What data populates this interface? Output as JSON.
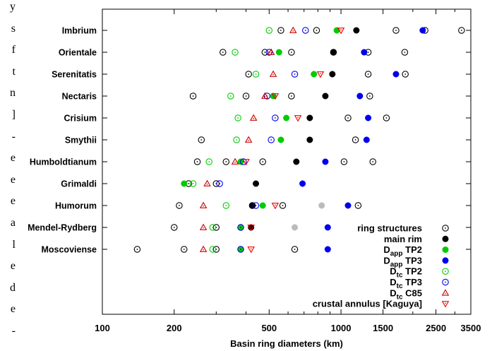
{
  "page_edge_glyphs": [
    "y",
    "s",
    "f",
    "t",
    "n",
    "]",
    "-",
    "e",
    "e",
    "e",
    "a",
    "l",
    "e",
    "d",
    "e",
    "-"
  ],
  "chart_data": {
    "type": "scatter",
    "title": "",
    "xlabel": "Basin ring diameters (km)",
    "ylabel": "",
    "xscale": "log",
    "xlim": [
      100,
      3500
    ],
    "xticks": [
      100,
      200,
      500,
      1000,
      1500,
      2500,
      3500
    ],
    "xtick_labels": [
      "100",
      "200",
      "500",
      "1000",
      "1500",
      "2500",
      "3500"
    ],
    "grid": false,
    "legend_position": "lower-right",
    "categories": [
      "Imbrium",
      "Orientale",
      "Serenitatis",
      "Nectaris",
      "Crisium",
      "Smythii",
      "Humboldtianum",
      "Grimaldi",
      "Humorum",
      "Mendel-Rydberg",
      "Moscoviense"
    ],
    "series": [
      {
        "name": "ring structures",
        "marker": "open-circle-dot",
        "color": "#000000",
        "points": [
          {
            "category": "Imbrium",
            "x": [
              560,
              790,
              1700,
              2250,
              3200
            ]
          },
          {
            "category": "Orientale",
            "x": [
              320,
              480,
              620,
              930,
              1300,
              1850
            ]
          },
          {
            "category": "Serenitatis",
            "x": [
              410,
              1300,
              1860
            ]
          },
          {
            "category": "Nectaris",
            "x": [
              240,
              400,
              620,
              1320
            ]
          },
          {
            "category": "Crisium",
            "x": [
              1070,
              1550
            ]
          },
          {
            "category": "Smythii",
            "x": [
              260,
              1150
            ]
          },
          {
            "category": "Humboldtianum",
            "x": [
              250,
              330,
              470,
              1030,
              1360
            ]
          },
          {
            "category": "Grimaldi",
            "x": [
              230,
              300
            ]
          },
          {
            "category": "Humorum",
            "x": [
              210,
              425,
              570,
              1180
            ]
          },
          {
            "category": "Mendel-Rydberg",
            "x": [
              200,
              300
            ]
          },
          {
            "category": "Moscoviense",
            "x": [
              140,
              220,
              300,
              640
            ]
          }
        ]
      },
      {
        "name": "main rim",
        "marker": "filled-circle",
        "color": "#000000",
        "points": [
          {
            "category": "Imbrium",
            "x": [
              1160
            ]
          },
          {
            "category": "Orientale",
            "x": [
              930
            ]
          },
          {
            "category": "Serenitatis",
            "x": [
              920
            ]
          },
          {
            "category": "Nectaris",
            "x": [
              860
            ]
          },
          {
            "category": "Crisium",
            "x": [
              740
            ]
          },
          {
            "category": "Smythii",
            "x": [
              740
            ]
          },
          {
            "category": "Humboldtianum",
            "x": [
              650
            ]
          },
          {
            "category": "Grimaldi",
            "x": [
              440
            ]
          },
          {
            "category": "Humorum",
            "x": [
              425
            ]
          },
          {
            "category": "Mendel-Rydberg",
            "x": [
              420
            ]
          }
        ]
      },
      {
        "name": "D_app TP2",
        "marker": "filled-circle",
        "color": "#00cc00",
        "points": [
          {
            "category": "Imbrium",
            "x": [
              960
            ]
          },
          {
            "category": "Orientale",
            "x": [
              550
            ]
          },
          {
            "category": "Serenitatis",
            "x": [
              770
            ]
          },
          {
            "category": "Nectaris",
            "x": [
              520
            ]
          },
          {
            "category": "Crisium",
            "x": [
              590
            ]
          },
          {
            "category": "Smythii",
            "x": [
              560
            ]
          },
          {
            "category": "Humboldtianum",
            "x": [
              380
            ]
          },
          {
            "category": "Grimaldi",
            "x": [
              220
            ]
          },
          {
            "category": "Humorum",
            "x": [
              470
            ]
          },
          {
            "category": "Mendel-Rydberg",
            "x": [
              380
            ]
          },
          {
            "category": "Moscoviense",
            "x": [
              380
            ]
          }
        ]
      },
      {
        "name": "D_app TP3",
        "marker": "filled-circle",
        "color": "#0000ee",
        "points": [
          {
            "category": "Imbrium",
            "x": [
              2200
            ]
          },
          {
            "category": "Orientale",
            "x": [
              1250
            ]
          },
          {
            "category": "Serenitatis",
            "x": [
              1700
            ]
          },
          {
            "category": "Nectaris",
            "x": [
              1200
            ]
          },
          {
            "category": "Crisium",
            "x": [
              1300
            ]
          },
          {
            "category": "Smythii",
            "x": [
              1280
            ]
          },
          {
            "category": "Humboldtianum",
            "x": [
              860
            ]
          },
          {
            "category": "Grimaldi",
            "x": [
              690
            ]
          },
          {
            "category": "Humorum",
            "x": [
              1070
            ]
          },
          {
            "category": "Mendel-Rydberg",
            "x": [
              880
            ]
          },
          {
            "category": "Moscoviense",
            "x": [
              880
            ]
          }
        ]
      },
      {
        "name": "D_tc TP2",
        "marker": "open-circle-dot",
        "color": "#00cc00",
        "points": [
          {
            "category": "Imbrium",
            "x": [
              500
            ]
          },
          {
            "category": "Orientale",
            "x": [
              360
            ]
          },
          {
            "category": "Serenitatis",
            "x": [
              440
            ]
          },
          {
            "category": "Nectaris",
            "x": [
              345
            ]
          },
          {
            "category": "Crisium",
            "x": [
              370
            ]
          },
          {
            "category": "Smythii",
            "x": [
              365
            ]
          },
          {
            "category": "Humboldtianum",
            "x": [
              280
            ]
          },
          {
            "category": "Grimaldi",
            "x": [
              240
            ]
          },
          {
            "category": "Humorum",
            "x": [
              330
            ]
          },
          {
            "category": "Mendel-Rydberg",
            "x": [
              290
            ]
          },
          {
            "category": "Moscoviense",
            "x": [
              290
            ]
          }
        ]
      },
      {
        "name": "D_tc TP3",
        "marker": "open-circle-dot",
        "color": "#0000ee",
        "points": [
          {
            "category": "Imbrium",
            "x": [
              710
            ]
          },
          {
            "category": "Orientale",
            "x": [
              500
            ]
          },
          {
            "category": "Serenitatis",
            "x": [
              640
            ]
          },
          {
            "category": "Nectaris",
            "x": [
              490
            ]
          },
          {
            "category": "Crisium",
            "x": [
              530
            ]
          },
          {
            "category": "Smythii",
            "x": [
              510
            ]
          },
          {
            "category": "Humboldtianum",
            "x": [
              390
            ]
          },
          {
            "category": "Grimaldi",
            "x": [
              310
            ]
          },
          {
            "category": "Humorum",
            "x": [
              440
            ]
          },
          {
            "category": "Mendel-Rydberg",
            "x": [
              380
            ]
          },
          {
            "category": "Moscoviense",
            "x": [
              380
            ]
          }
        ]
      },
      {
        "name": "D_tc C85",
        "marker": "open-triangle-up",
        "color": "#cc0000",
        "points": [
          {
            "category": "Imbrium",
            "x": [
              630
            ]
          },
          {
            "category": "Orientale",
            "x": [
              510
            ]
          },
          {
            "category": "Serenitatis",
            "x": [
              520
            ]
          },
          {
            "category": "Nectaris",
            "x": [
              480
            ]
          },
          {
            "category": "Crisium",
            "x": [
              430
            ]
          },
          {
            "category": "Smythii",
            "x": [
              410
            ]
          },
          {
            "category": "Humboldtianum",
            "x": [
              360
            ]
          },
          {
            "category": "Grimaldi",
            "x": [
              275
            ]
          },
          {
            "category": "Humorum",
            "x": [
              265
            ]
          },
          {
            "category": "Mendel-Rydberg",
            "x": [
              265
            ]
          },
          {
            "category": "Moscoviense",
            "x": [
              265
            ]
          }
        ]
      },
      {
        "name": "crustal annulus [Kaguya]",
        "marker": "open-triangle-down",
        "color": "#ee0000",
        "points": [
          {
            "category": "Imbrium",
            "x": [
              1000
            ]
          },
          {
            "category": "Serenitatis",
            "x": [
              820
            ]
          },
          {
            "category": "Nectaris",
            "x": [
              530
            ]
          },
          {
            "category": "Crisium",
            "x": [
              660
            ]
          },
          {
            "category": "Humboldtianum",
            "x": [
              400
            ]
          },
          {
            "category": "Humorum",
            "x": [
              530
            ]
          },
          {
            "category": "Mendel-Rydberg",
            "x": [
              420
            ]
          },
          {
            "category": "Moscoviense",
            "x": [
              420
            ]
          }
        ]
      },
      {
        "name": "",
        "marker": "filled-circle",
        "color": "#bbbbbb",
        "points": [
          {
            "category": "Humorum",
            "x": [
              830
            ]
          },
          {
            "category": "Mendel-Rydberg",
            "x": [
              640
            ]
          }
        ]
      }
    ],
    "legend": [
      {
        "base": "ring structures",
        "sub": "",
        "suffix": ""
      },
      {
        "base": "main rim",
        "sub": "",
        "suffix": ""
      },
      {
        "base": "D",
        "sub": "app",
        "suffix": " TP2"
      },
      {
        "base": "D",
        "sub": "app",
        "suffix": " TP3"
      },
      {
        "base": "D",
        "sub": "tc",
        "suffix": " TP2"
      },
      {
        "base": "D",
        "sub": "tc",
        "suffix": " TP3"
      },
      {
        "base": "D",
        "sub": "tc",
        "suffix": " C85"
      },
      {
        "base": "crustal annulus [Kaguya]",
        "sub": "",
        "suffix": ""
      }
    ]
  }
}
